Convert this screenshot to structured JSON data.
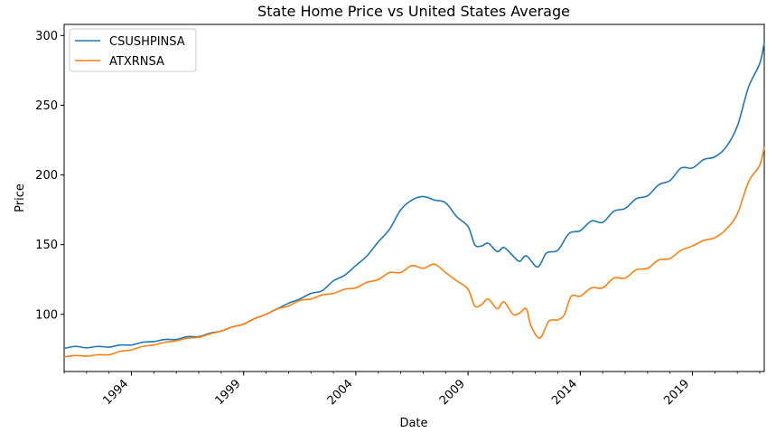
{
  "chart_data": {
    "type": "line",
    "title": "State Home Price vs United States Average",
    "xlabel": "Date",
    "ylabel": "Price",
    "xlim": [
      1991.0,
      2022.2
    ],
    "ylim": [
      59,
      308
    ],
    "grid": false,
    "legend_position": "top-left",
    "x_ticks": [
      {
        "label": "1994",
        "value": 1994
      },
      {
        "label": "1999",
        "value": 1999
      },
      {
        "label": "2004",
        "value": 2004
      },
      {
        "label": "2009",
        "value": 2009
      },
      {
        "label": "2014",
        "value": 2014
      },
      {
        "label": "2019",
        "value": 2019
      }
    ],
    "y_ticks": [
      100,
      150,
      200,
      250,
      300
    ],
    "series": [
      {
        "name": "CSUSHPINSA",
        "color": "#1f77b4",
        "points": [
          [
            1991.0,
            75.5
          ],
          [
            1991.5,
            77
          ],
          [
            1992.0,
            76
          ],
          [
            1992.5,
            77
          ],
          [
            1993.0,
            76.5
          ],
          [
            1993.5,
            78
          ],
          [
            1994.0,
            78
          ],
          [
            1994.5,
            80
          ],
          [
            1995.0,
            80.5
          ],
          [
            1995.5,
            82
          ],
          [
            1996.0,
            82
          ],
          [
            1996.5,
            84
          ],
          [
            1997.0,
            84
          ],
          [
            1997.5,
            86.5
          ],
          [
            1998.0,
            88
          ],
          [
            1998.5,
            91
          ],
          [
            1999.0,
            93
          ],
          [
            1999.5,
            97
          ],
          [
            2000.0,
            100
          ],
          [
            2000.5,
            104
          ],
          [
            2001.0,
            108
          ],
          [
            2001.5,
            111
          ],
          [
            2002.0,
            115
          ],
          [
            2002.5,
            117
          ],
          [
            2003.0,
            124
          ],
          [
            2003.5,
            128
          ],
          [
            2004.0,
            135
          ],
          [
            2004.5,
            142
          ],
          [
            2005.0,
            152
          ],
          [
            2005.5,
            161
          ],
          [
            2006.0,
            175
          ],
          [
            2006.5,
            182
          ],
          [
            2007.0,
            184.5
          ],
          [
            2007.5,
            182
          ],
          [
            2008.0,
            180
          ],
          [
            2008.5,
            170
          ],
          [
            2009.0,
            163
          ],
          [
            2009.3,
            150
          ],
          [
            2009.6,
            149
          ],
          [
            2009.9,
            151
          ],
          [
            2010.3,
            145
          ],
          [
            2010.6,
            148
          ],
          [
            2011.0,
            142
          ],
          [
            2011.3,
            138
          ],
          [
            2011.6,
            142
          ],
          [
            2012.1,
            134
          ],
          [
            2012.5,
            144
          ],
          [
            2013.0,
            146
          ],
          [
            2013.5,
            158
          ],
          [
            2014.0,
            160
          ],
          [
            2014.5,
            167
          ],
          [
            2015.0,
            166
          ],
          [
            2015.5,
            174
          ],
          [
            2016.0,
            176
          ],
          [
            2016.5,
            183
          ],
          [
            2017.0,
            185
          ],
          [
            2017.5,
            193
          ],
          [
            2018.0,
            196
          ],
          [
            2018.5,
            205
          ],
          [
            2019.0,
            205
          ],
          [
            2019.5,
            211
          ],
          [
            2020.0,
            213
          ],
          [
            2020.5,
            220
          ],
          [
            2021.0,
            235
          ],
          [
            2021.5,
            263
          ],
          [
            2022.0,
            280
          ],
          [
            2022.2,
            295
          ]
        ]
      },
      {
        "name": "ATXRNSA",
        "color": "#ff7f0e",
        "points": [
          [
            1991.0,
            69.5
          ],
          [
            1991.5,
            70.5
          ],
          [
            1992.0,
            70
          ],
          [
            1992.5,
            71
          ],
          [
            1993.0,
            71
          ],
          [
            1993.5,
            73.5
          ],
          [
            1994.0,
            74.5
          ],
          [
            1994.5,
            77
          ],
          [
            1995.0,
            78
          ],
          [
            1995.5,
            80
          ],
          [
            1996.0,
            81
          ],
          [
            1996.5,
            83
          ],
          [
            1997.0,
            83.5
          ],
          [
            1997.5,
            86
          ],
          [
            1998.0,
            88
          ],
          [
            1998.5,
            91
          ],
          [
            1999.0,
            93
          ],
          [
            1999.5,
            97
          ],
          [
            2000.0,
            100
          ],
          [
            2000.5,
            104
          ],
          [
            2001.0,
            106
          ],
          [
            2001.5,
            110
          ],
          [
            2002.0,
            111
          ],
          [
            2002.5,
            114
          ],
          [
            2003.0,
            115
          ],
          [
            2003.5,
            118
          ],
          [
            2004.0,
            119
          ],
          [
            2004.5,
            123
          ],
          [
            2005.0,
            125
          ],
          [
            2005.5,
            130
          ],
          [
            2006.0,
            130
          ],
          [
            2006.5,
            135
          ],
          [
            2007.0,
            133
          ],
          [
            2007.5,
            136
          ],
          [
            2008.0,
            130
          ],
          [
            2008.5,
            124
          ],
          [
            2009.0,
            118
          ],
          [
            2009.3,
            106
          ],
          [
            2009.6,
            107
          ],
          [
            2009.9,
            111
          ],
          [
            2010.3,
            104
          ],
          [
            2010.6,
            109
          ],
          [
            2011.0,
            100
          ],
          [
            2011.3,
            101
          ],
          [
            2011.6,
            104
          ],
          [
            2011.8,
            92
          ],
          [
            2012.2,
            83
          ],
          [
            2012.6,
            95
          ],
          [
            2013.0,
            96
          ],
          [
            2013.3,
            100
          ],
          [
            2013.6,
            113
          ],
          [
            2014.0,
            113
          ],
          [
            2014.5,
            119
          ],
          [
            2015.0,
            119
          ],
          [
            2015.5,
            126
          ],
          [
            2016.0,
            126
          ],
          [
            2016.5,
            132
          ],
          [
            2017.0,
            133
          ],
          [
            2017.5,
            139
          ],
          [
            2018.0,
            140
          ],
          [
            2018.5,
            146
          ],
          [
            2019.0,
            149
          ],
          [
            2019.5,
            153
          ],
          [
            2020.0,
            155
          ],
          [
            2020.5,
            161
          ],
          [
            2021.0,
            172
          ],
          [
            2021.5,
            195
          ],
          [
            2022.0,
            207
          ],
          [
            2022.2,
            220
          ]
        ]
      }
    ]
  }
}
